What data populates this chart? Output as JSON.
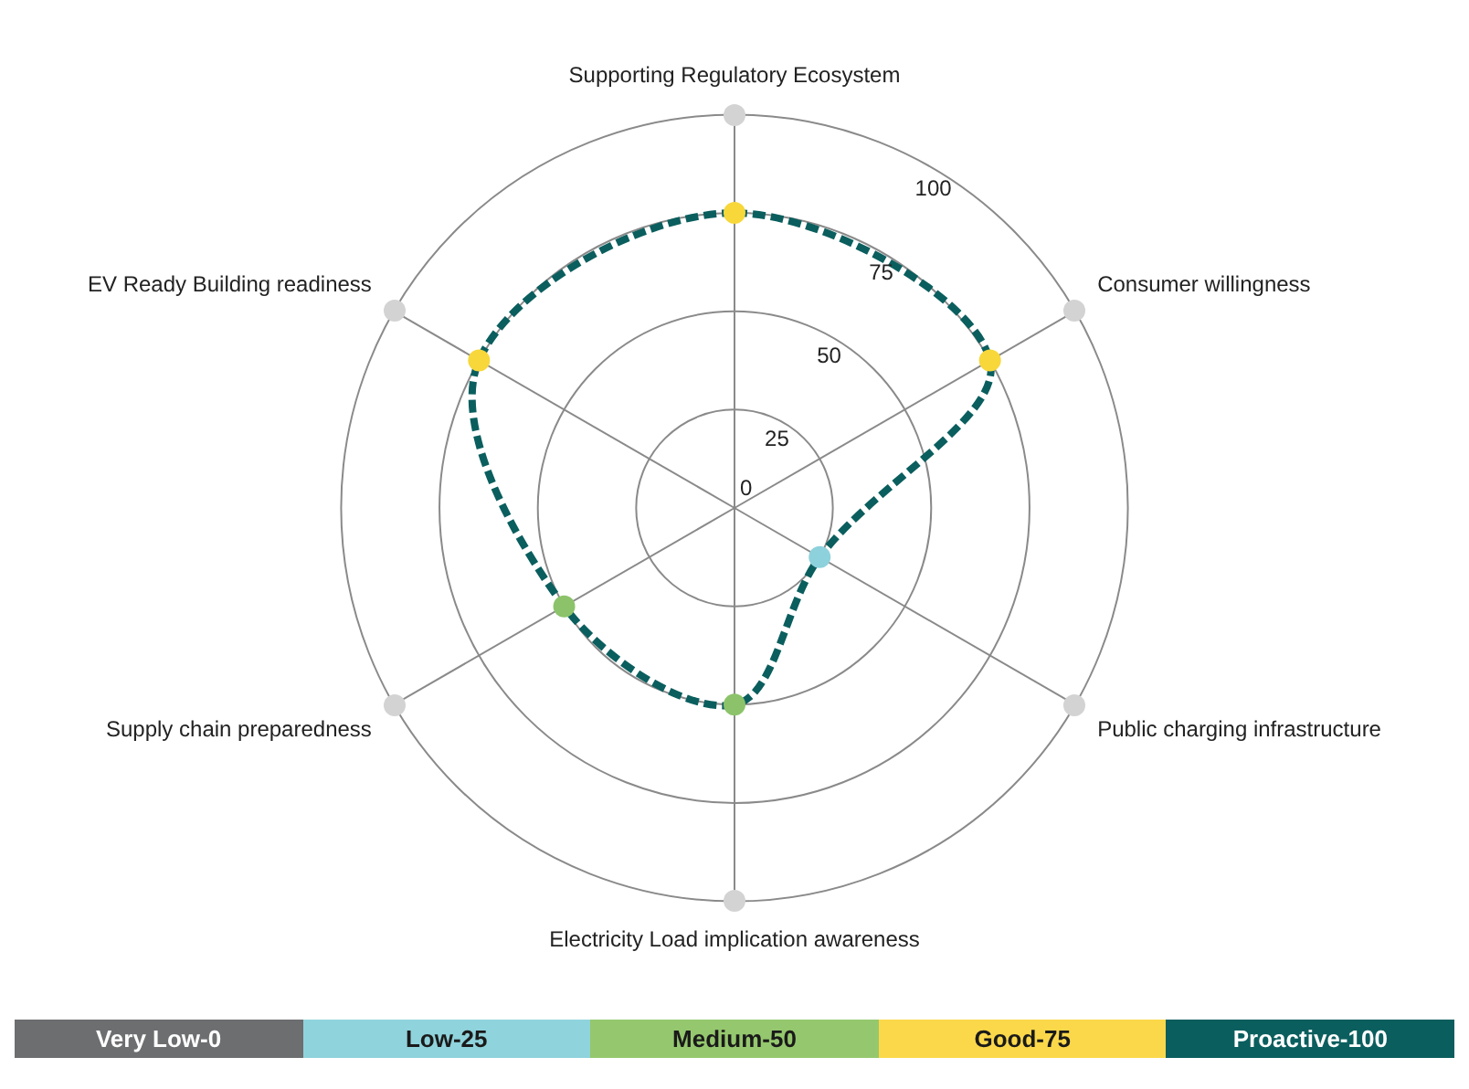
{
  "chart_data": {
    "type": "radar",
    "categories": [
      "Supporting Regulatory Ecosystem",
      "Consumer willingness",
      "Public charging infrastructure",
      "Electricity Load implication awareness",
      "Supply chain preparedness",
      "EV Ready Building readiness"
    ],
    "series": [
      {
        "color": "#0b5e5e",
        "line_style": "dashed",
        "colors": [
          "#f7d73a",
          "#f7d73a",
          "#8dd1dc",
          "#8cc36a",
          "#8cc36a",
          "#f7d73a"
        ],
        "values": [
          75,
          75,
          25,
          50,
          50,
          75
        ]
      }
    ],
    "ylim": [
      0,
      100
    ],
    "yticks": [
      0,
      25,
      50,
      75,
      100
    ],
    "grid": true,
    "legend": false,
    "marker": "circle",
    "annotations": [
      "Very Low-0",
      "Low-25",
      "Medium-50",
      "Good-75",
      "Proactive-100"
    ]
  }
}
